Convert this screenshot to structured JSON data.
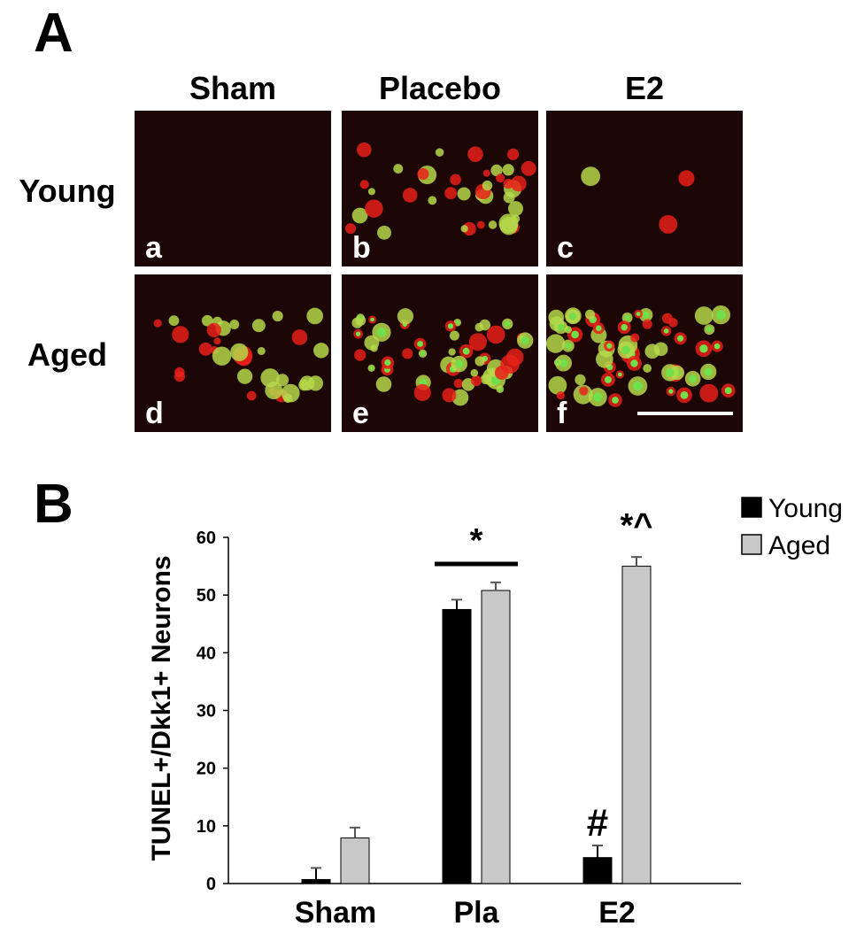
{
  "panel_a": {
    "label": "A",
    "columns": [
      "Sham",
      "Placebo",
      "E2"
    ],
    "rows": [
      "Young",
      "Aged"
    ],
    "image_labels": [
      "a",
      "b",
      "c",
      "d",
      "e",
      "f"
    ]
  },
  "chart_data": {
    "type": "bar",
    "panel_label": "B",
    "y_label": "TUNEL+/Dkk1+ Neurons",
    "categories": [
      "Sham",
      "Pla",
      "E2"
    ],
    "series": [
      {
        "name": "Young",
        "color": "#000000",
        "values": [
          0.7,
          47.5,
          4.5
        ],
        "errors": [
          2.0,
          1.7,
          2.1
        ]
      },
      {
        "name": "Aged",
        "color": "#c8c8c8",
        "values": [
          7.9,
          50.8,
          55.0
        ],
        "errors": [
          1.8,
          1.4,
          1.6
        ]
      }
    ],
    "ylim": [
      0,
      60
    ],
    "yticks": [
      0,
      10,
      20,
      30,
      40,
      50,
      60
    ],
    "annotations": [
      "*",
      "*^",
      "#"
    ],
    "legend": "top-right"
  }
}
